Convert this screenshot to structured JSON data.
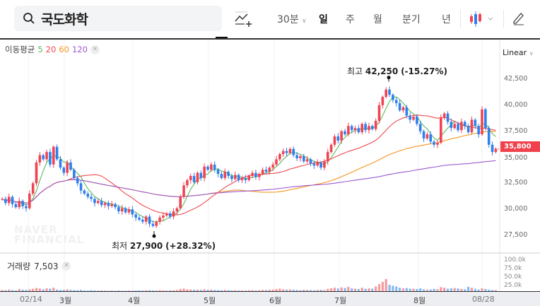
{
  "search": {
    "query": "국도화학",
    "icon": "search-icon"
  },
  "toolbar": {
    "indicator_icon": "add-indicator-icon",
    "interval": "30분",
    "periods": [
      "일",
      "주",
      "월",
      "분기",
      "년"
    ],
    "active_period": "일",
    "chart_type_icon": "candlestick-icon",
    "draw_icon": "pencil-icon"
  },
  "ma_legend": {
    "label": "이동평균",
    "periods": [
      "5",
      "20",
      "60",
      "120"
    ],
    "colors": [
      "#5cb85c",
      "#f0494f",
      "#f7941d",
      "#9b59d0"
    ]
  },
  "scale": "Linear",
  "colors": {
    "up": "#f04452",
    "down": "#2f80ed",
    "vol_up": "#f39a9f",
    "vol_down": "#86b9f2"
  },
  "chart_data": {
    "type": "candlestick",
    "x_ticks": [
      "02/14",
      "3월",
      "4월",
      "5월",
      "6월",
      "7월",
      "8월",
      "08/28"
    ],
    "y_ticks": [
      "42,500",
      "40,000",
      "37,500",
      "35,000",
      "32,500",
      "30,000",
      "27,500"
    ],
    "ylim": [
      27500,
      42500
    ],
    "current_price": "35,800",
    "high_annotation": {
      "label": "최고",
      "value": "42,250",
      "change": "(-15.27%)"
    },
    "low_annotation": {
      "label": "최저",
      "value": "27,900",
      "change": "(+28.32%)"
    },
    "close": [
      31000,
      30600,
      31200,
      30500,
      30200,
      30800,
      30300,
      30100,
      31500,
      32500,
      34500,
      35200,
      34800,
      35500,
      34300,
      36000,
      34800,
      34000,
      33500,
      34500,
      33800,
      33000,
      32500,
      31800,
      31500,
      31200,
      31000,
      30600,
      30800,
      30400,
      30600,
      30300,
      30500,
      30200,
      29800,
      30100,
      29700,
      30000,
      29500,
      29200,
      29000,
      28800,
      29300,
      28600,
      28400,
      28800,
      29200,
      29400,
      29600,
      29300,
      29800,
      30100,
      31200,
      32300,
      32800,
      33200,
      32600,
      33500,
      33000,
      34100,
      33800,
      34300,
      33800,
      33400,
      33000,
      33600,
      33200,
      32900,
      33300,
      32800,
      33000,
      32800,
      33200,
      33500,
      33100,
      33400,
      33800,
      33600,
      34000,
      34300,
      34800,
      35300,
      35600,
      35400,
      35800,
      35200,
      34900,
      35100,
      34600,
      34800,
      34400,
      34200,
      34500,
      34000,
      34600,
      35500,
      36200,
      37000,
      36600,
      37500,
      37200,
      38000,
      37600,
      37800,
      37400,
      38200,
      37600,
      38000,
      37700,
      38500,
      40000,
      40800,
      41500,
      41000,
      40500,
      40200,
      39500,
      39800,
      39000,
      38600,
      38900,
      38200,
      37500,
      36800,
      37200,
      36500,
      36200,
      36400,
      38800,
      39200,
      38400,
      37800,
      38200,
      37600,
      38400,
      38000,
      37400,
      38600,
      38000,
      37200,
      39600,
      37800,
      36200,
      35500,
      35800
    ],
    "volume_label": "거래량",
    "volume_last": "7,503",
    "volume_ticks": [
      "100.0k",
      "75.0k",
      "50.0k",
      "25.0k"
    ],
    "volume_k": [
      8,
      6,
      10,
      7,
      5,
      14,
      9,
      8,
      12,
      15,
      20,
      17,
      12,
      18,
      16,
      22,
      10,
      8,
      9,
      12,
      8,
      7,
      6,
      8,
      5,
      4,
      6,
      5,
      4,
      5,
      4,
      3,
      4,
      3,
      4,
      3,
      3,
      4,
      3,
      4,
      5,
      4,
      6,
      7,
      5,
      4,
      6,
      5,
      4,
      5,
      6,
      7,
      14,
      16,
      12,
      11,
      9,
      10,
      8,
      12,
      9,
      10,
      8,
      7,
      6,
      8,
      6,
      5,
      6,
      5,
      5,
      4,
      6,
      7,
      5,
      6,
      8,
      7,
      9,
      10,
      14,
      16,
      12,
      10,
      11,
      9,
      8,
      7,
      9,
      8,
      7,
      6,
      8,
      9,
      7,
      14,
      18,
      22,
      17,
      24,
      20,
      28,
      18,
      16,
      14,
      22,
      15,
      18,
      16,
      30,
      45,
      60,
      78,
      40,
      35,
      30,
      22,
      18,
      20,
      16,
      15,
      14,
      18,
      12,
      10,
      11,
      14,
      12,
      26,
      22,
      16,
      18,
      20,
      17,
      14,
      12,
      28,
      22,
      15,
      10,
      18,
      14,
      10,
      8,
      7
    ]
  }
}
